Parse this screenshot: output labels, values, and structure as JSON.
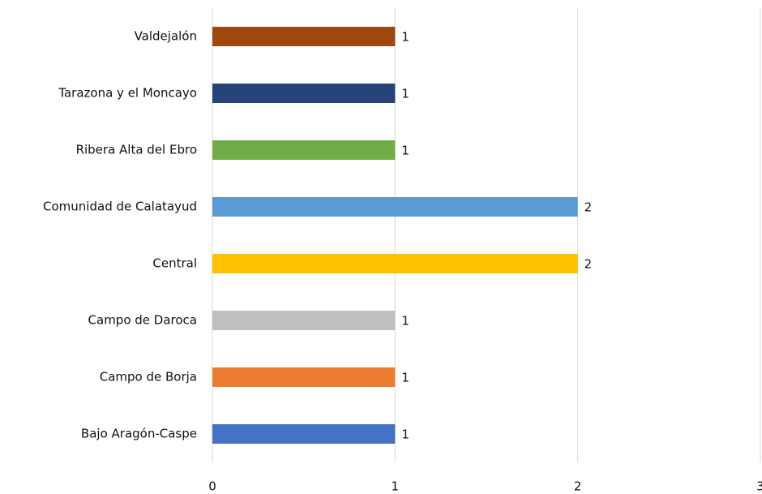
{
  "chart_data": {
    "type": "barh",
    "categories": [
      "Valdejalón",
      "Tarazona y el Moncayo",
      "Ribera Alta del Ebro",
      "Comunidad de Calatayud",
      "Central",
      "Campo de Daroca",
      "Campo de Borja",
      "Bajo Aragón-Caspe"
    ],
    "values": [
      1,
      1,
      1,
      2,
      2,
      1,
      1,
      1
    ],
    "colors": [
      "#9e480e",
      "#264478",
      "#70ad47",
      "#5b9bd5",
      "#ffc000",
      "#bfbfbf",
      "#ed7d31",
      "#4472c4"
    ],
    "xlim": [
      0,
      3
    ],
    "xticks": [
      0,
      1,
      2,
      3
    ],
    "grid": true
  }
}
